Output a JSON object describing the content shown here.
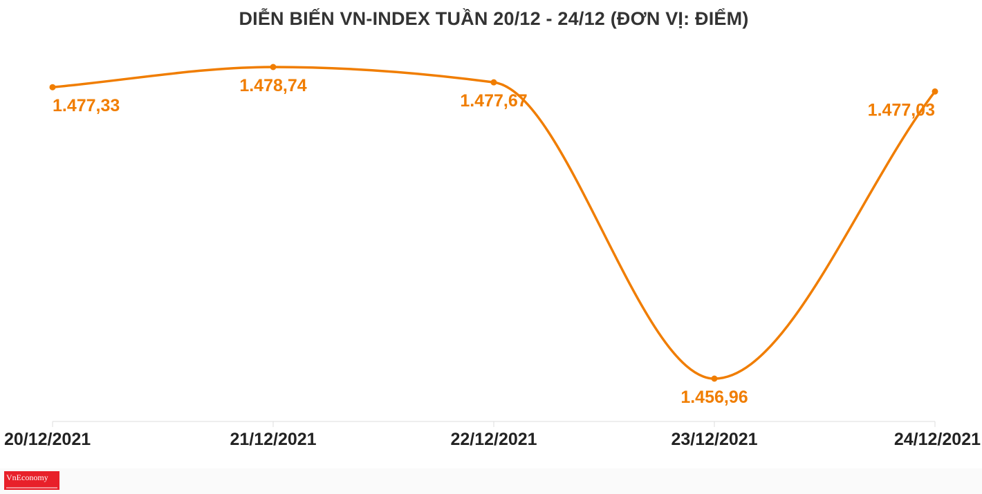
{
  "title": "DIỄN BIẾN VN-INDEX TUẦN 20/12 - 24/12 (ĐƠN VỊ: ĐIỂM)",
  "brand": {
    "name": "VnEconomy"
  },
  "colors": {
    "line": "#f07d00",
    "label": "#f07d00",
    "axis": "#dddddd",
    "tick_text": "#222222",
    "title": "#333333",
    "brand": "#e8202a"
  },
  "chart_data": {
    "type": "line",
    "title": "DIỄN BIẾN VN-INDEX TUẦN 20/12 - 24/12 (ĐƠN VỊ: ĐIỂM)",
    "xlabel": "",
    "ylabel": "",
    "categories": [
      "20/12/2021",
      "21/12/2021",
      "22/12/2021",
      "23/12/2021",
      "24/12/2021"
    ],
    "series": [
      {
        "values": [
          1477.33,
          1478.74,
          1477.67,
          1456.96,
          1477.03
        ]
      }
    ],
    "data_labels": [
      "1.477,33",
      "1.478,74",
      "1.477,67",
      "1.456,96",
      "1.477,03"
    ],
    "ylim": [
      1456.96,
      1478.74
    ],
    "grid": false,
    "legend": "none",
    "smooth": true
  }
}
